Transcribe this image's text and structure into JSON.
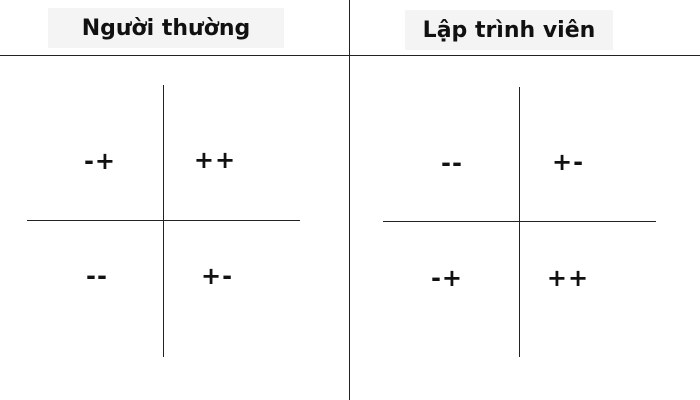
{
  "headers": {
    "left": "Người thường",
    "right": "Lập trình viên"
  },
  "quadrants": {
    "left": {
      "top_left": "-+",
      "top_right": "++",
      "bottom_left": "--",
      "bottom_right": "+-"
    },
    "right": {
      "top_left": "--",
      "top_right": "+-",
      "bottom_left": "-+",
      "bottom_right": "++"
    }
  }
}
